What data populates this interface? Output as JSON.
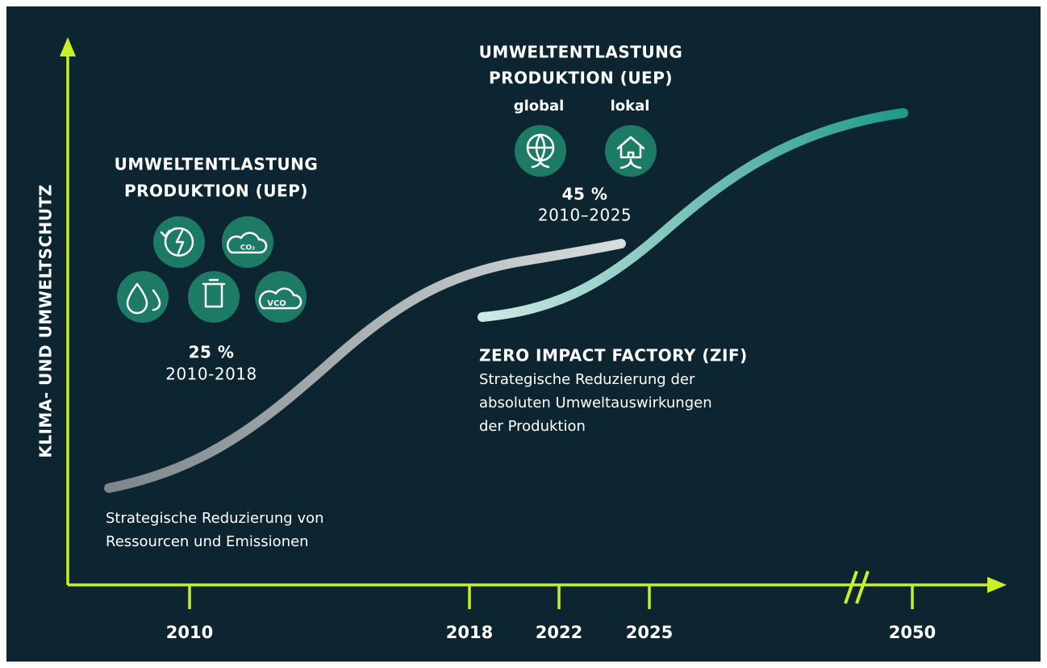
{
  "y_axis_label": "KLIMA- UND UMWELTSCHUTZ",
  "x_axis_labels": [
    "2010",
    "2018",
    "2022",
    "2025",
    "2050"
  ],
  "uep_2018": {
    "title_lines": [
      "UMWELTENTLASTUNG",
      "PRODUKTION (UEP)"
    ],
    "icon_texts": [
      "CO₂",
      "VCO"
    ],
    "percent": "25 %",
    "period": "2010-2018",
    "description_lines": [
      "Strategische Reduzierung von",
      "Ressourcen und Emissionen"
    ]
  },
  "uep_2025": {
    "title_lines": [
      "UMWELTENTLASTUNG",
      "PRODUKTION (UEP)"
    ],
    "icon_labels": [
      "global",
      "lokal"
    ],
    "percent": "45 %",
    "period": "2010–2025"
  },
  "zif": {
    "title": "ZERO IMPACT FACTORY (ZIF)",
    "description_lines": [
      "Strategische Reduzierung der",
      "absoluten Umweltauswirkungen",
      "der Produktion"
    ]
  }
}
